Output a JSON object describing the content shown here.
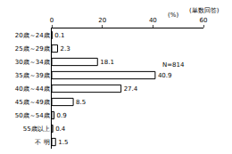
{
  "chart_data": {
    "type": "bar",
    "orientation": "horizontal",
    "categories": [
      "20歳～24歳",
      "25歳～29歳",
      "30歳～34歳",
      "35歳～39歳",
      "40歳～44歳",
      "45歳～49歳",
      "50歳～54歳",
      "55歳以上",
      "不 明"
    ],
    "values": [
      0.1,
      2.3,
      18.1,
      40.9,
      27.4,
      8.5,
      0.9,
      0.4,
      1.5
    ],
    "color": "#ffffff",
    "xlabel": "(%)",
    "annotations": [
      "(単数回答)",
      "N=814"
    ],
    "xlim": [
      0,
      60
    ],
    "xticks": [
      0,
      20,
      40,
      60
    ],
    "grid": false,
    "data_labels": true
  }
}
